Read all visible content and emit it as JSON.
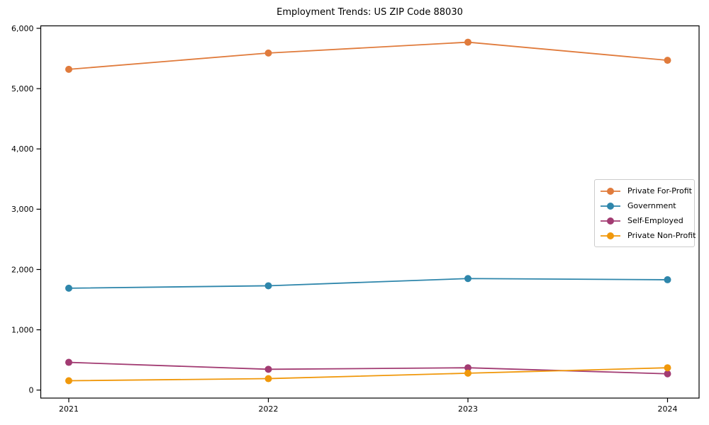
{
  "title": "Employment Trends: US ZIP Code 88030",
  "chart_data": {
    "type": "line",
    "title": "Employment Trends: US ZIP Code 88030",
    "x": [
      2021,
      2022,
      2023,
      2024
    ],
    "xtick_labels": [
      "2021",
      "2022",
      "2023",
      "2024"
    ],
    "series": [
      {
        "name": "Private For-Profit",
        "color": "#E07B3C",
        "values": [
          5320,
          5590,
          5770,
          5470
        ]
      },
      {
        "name": "Government",
        "color": "#2E86AB",
        "values": [
          1690,
          1730,
          1850,
          1830
        ]
      },
      {
        "name": "Self-Employed",
        "color": "#A23B72",
        "values": [
          460,
          345,
          370,
          270
        ]
      },
      {
        "name": "Private Non-Profit",
        "color": "#F0980B",
        "values": [
          155,
          190,
          280,
          370
        ]
      }
    ],
    "ylabel": "",
    "xlabel": "",
    "ylim": [
      0,
      6000
    ],
    "ytick_step": 1000,
    "ytick_labels": [
      "0",
      "1,000",
      "2,000",
      "3,000",
      "4,000",
      "5,000",
      "6,000"
    ],
    "grid": false,
    "legend_position": "center right",
    "axis_color": "#000000",
    "marker": "circle"
  }
}
